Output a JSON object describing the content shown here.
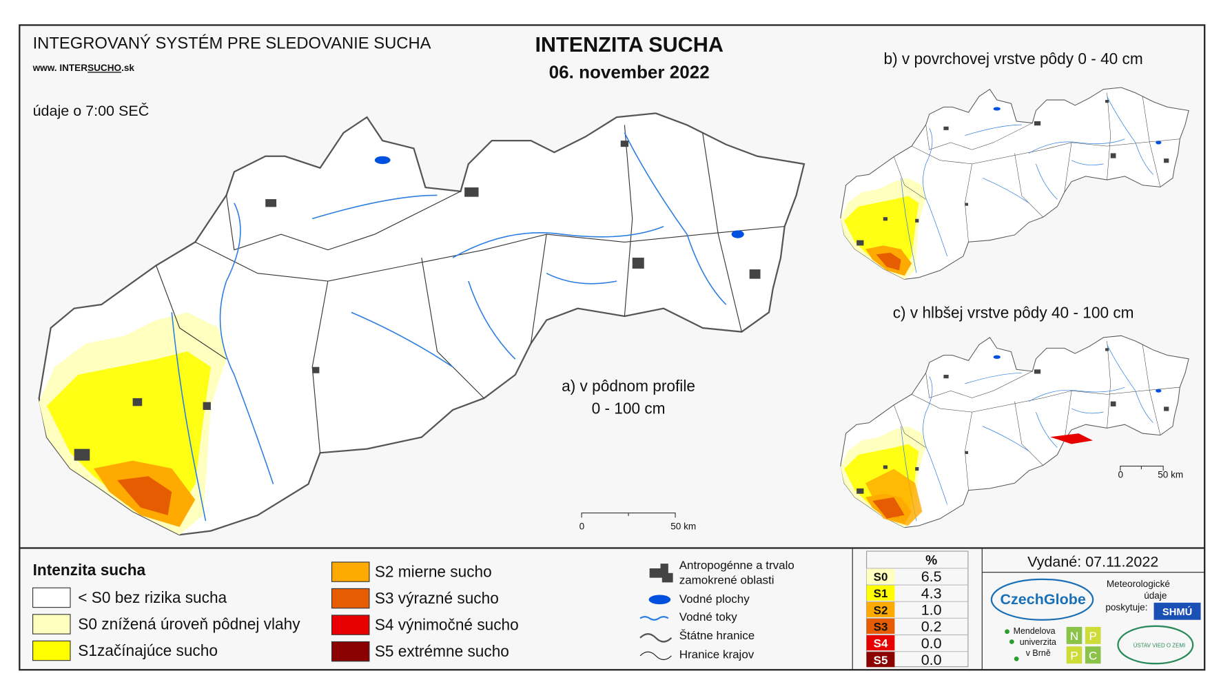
{
  "header": {
    "system": "INTEGROVANÝ SYSTÉM PRE SLEDOVANIE SUCHA",
    "website_prefix": "www.",
    "website_a": "INTER",
    "website_b": "SUCHO",
    "website_c": ".sk",
    "data_time": "údaje o 7:00 SEČ"
  },
  "title": "INTENZITA SUCHA",
  "date": "06. november 2022",
  "maps": {
    "a": "a) v pôdnom profile",
    "a_depth": "0 - 100 cm",
    "b": "b) v povrchovej vrstve pôdy 0 - 40 cm",
    "c": "c) v hlbšej vrstve pôdy 40 - 100 cm"
  },
  "scale": {
    "zero": "0",
    "fifty": "50 km"
  },
  "legend": {
    "title": "Intenzita sucha",
    "items": [
      {
        "label": "< S0 bez rizika sucha",
        "color": "#ffffff"
      },
      {
        "label": "S0 znížená úroveň pôdnej vlahy",
        "color": "#ffffc0"
      },
      {
        "label": "S1začínajúce sucho",
        "color": "#ffff00"
      },
      {
        "label": "S2 mierne sucho",
        "color": "#ffaa00"
      },
      {
        "label": "S3 výrazné sucho",
        "color": "#e65c00"
      },
      {
        "label": "S4 výnimočné sucho",
        "color": "#e60000"
      },
      {
        "label": "S5 extrémne sucho",
        "color": "#8b0000"
      }
    ]
  },
  "layers": [
    [
      "Antropogénne a trvalo",
      "zamokrené oblasti"
    ],
    [
      "Vodné plochy"
    ],
    [
      "Vodné toky"
    ],
    [
      "Štátne hranice"
    ],
    [
      "Hranice krajov"
    ]
  ],
  "stats": {
    "header": "%",
    "rows": [
      {
        "code": "S0",
        "value": "6.5",
        "color": "#ffffc0"
      },
      {
        "code": "S1",
        "value": "4.3",
        "color": "#ffff00"
      },
      {
        "code": "S2",
        "value": "1.0",
        "color": "#ffaa00"
      },
      {
        "code": "S3",
        "value": "0.2",
        "color": "#e65c00"
      },
      {
        "code": "S4",
        "value": "0.0",
        "color": "#e60000"
      },
      {
        "code": "S5",
        "value": "0.0",
        "color": "#8b0000"
      }
    ]
  },
  "issued": "Vydané: 07.11.2022",
  "logos": {
    "czechglobe": "CzechGlobe",
    "meteo": [
      "Meteorologické",
      "údaje",
      "poskytuje:"
    ],
    "shmu": "SHMÚ",
    "mendel": [
      "Mendelova",
      "univerzita",
      "v Brně"
    ],
    "npc": [
      "N",
      "P",
      "P",
      "C"
    ],
    "ustav": "ÚSTAV VIED O ZEMI"
  }
}
